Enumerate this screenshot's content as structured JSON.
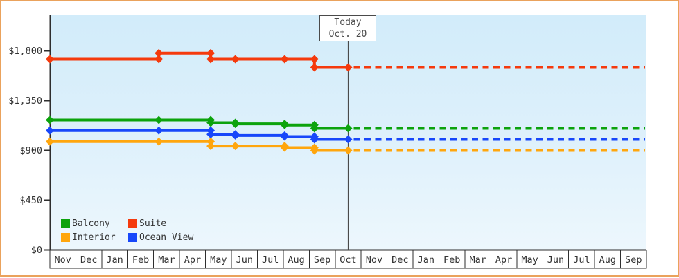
{
  "chart_data": {
    "type": "line",
    "title": "",
    "description": "Cruise cabin price history by category with dotted forecast after today marker",
    "ylim": [
      0,
      1800
    ],
    "y_ticks": [
      {
        "value": 0,
        "label": "$0"
      },
      {
        "value": 450,
        "label": "$450"
      },
      {
        "value": 900,
        "label": "$900"
      },
      {
        "value": 1350,
        "label": "$1,350"
      },
      {
        "value": 1800,
        "label": "$1,800"
      }
    ],
    "x_months": [
      "Nov",
      "Dec",
      "Jan",
      "Feb",
      "Mar",
      "Apr",
      "May",
      "Jun",
      "Jul",
      "Aug",
      "Sep",
      "Oct",
      "Nov",
      "Dec",
      "Jan",
      "Feb",
      "Mar",
      "Apr",
      "May",
      "Jun",
      "Jul",
      "Aug",
      "Sep"
    ],
    "today": {
      "line1": "Today",
      "line2": "Oct. 20",
      "month_offset": 11.5
    },
    "series": [
      {
        "name": "Suite",
        "color": "#f53a0d",
        "points": [
          [
            0,
            1725
          ],
          [
            4.2,
            1780
          ],
          [
            6.2,
            1725
          ],
          [
            7.15,
            1725
          ],
          [
            9.05,
            1725
          ],
          [
            10.2,
            1650
          ],
          [
            11.5,
            1650
          ]
        ],
        "forecast": 1650
      },
      {
        "name": "Balcony",
        "color": "#0ca30c",
        "points": [
          [
            0,
            1175
          ],
          [
            4.2,
            1175
          ],
          [
            6.2,
            1150
          ],
          [
            7.15,
            1140
          ],
          [
            9.05,
            1130
          ],
          [
            10.2,
            1100
          ],
          [
            11.5,
            1100
          ]
        ],
        "forecast": 1100
      },
      {
        "name": "Ocean View",
        "color": "#1747fa",
        "points": [
          [
            0,
            1080
          ],
          [
            4.2,
            1080
          ],
          [
            6.2,
            1045
          ],
          [
            7.15,
            1035
          ],
          [
            9.05,
            1025
          ],
          [
            10.2,
            1000
          ],
          [
            11.5,
            1000
          ]
        ],
        "forecast": 1000
      },
      {
        "name": "Interior",
        "color": "#ffa60d",
        "points": [
          [
            0,
            980
          ],
          [
            4.2,
            980
          ],
          [
            6.2,
            940
          ],
          [
            7.15,
            940
          ],
          [
            9.05,
            925
          ],
          [
            10.2,
            900
          ],
          [
            11.5,
            900
          ]
        ],
        "forecast": 900
      }
    ],
    "legend": {
      "rows": [
        [
          "Balcony",
          "Suite"
        ],
        [
          "Interior",
          "Ocean View"
        ]
      ]
    },
    "colors": {
      "axis": "#2e2e2e",
      "tick_text": "#333333",
      "today": "#4a4a4a",
      "frame_border": "#eaa25c"
    }
  }
}
